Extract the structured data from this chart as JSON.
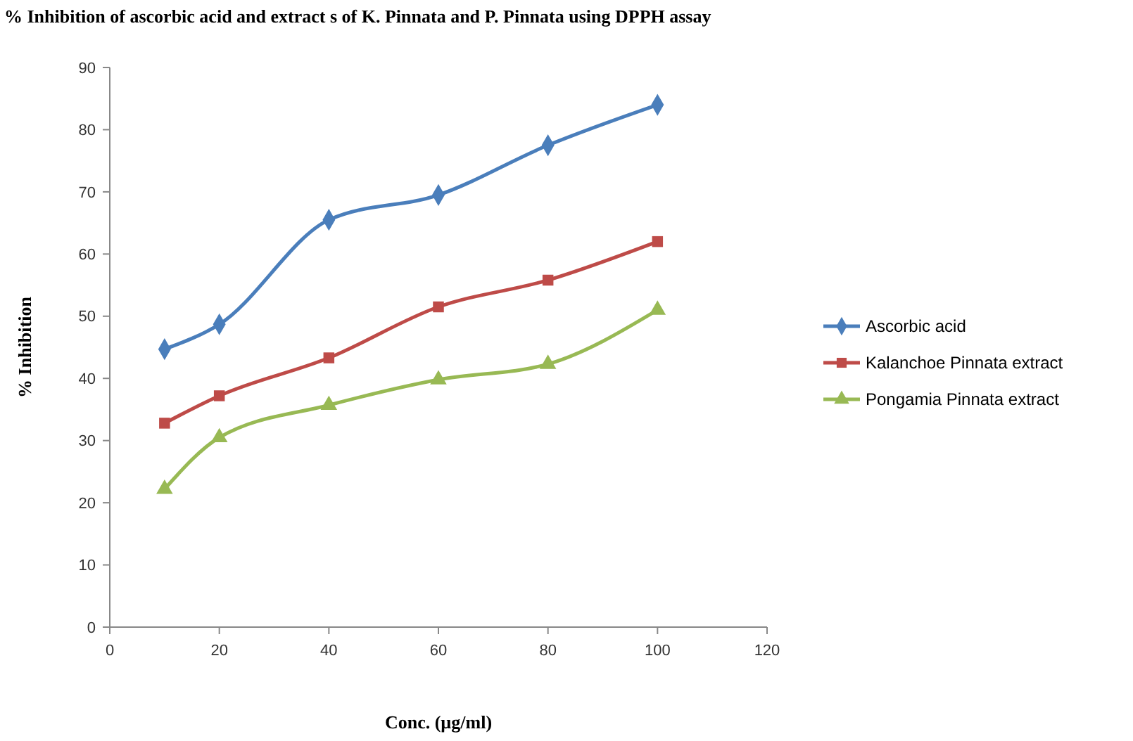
{
  "chart_data": {
    "type": "line",
    "title": "% Inhibition of ascorbic acid and extract s of K. Pinnata and P. Pinnata using DPPH assay",
    "xlabel": "Conc. (µg/ml)",
    "ylabel": "% Inhibition",
    "x": [
      10,
      20,
      40,
      60,
      80,
      100
    ],
    "series": [
      {
        "name": "Ascorbic acid",
        "color": "#4a7ebb",
        "marker": "diamond",
        "values": [
          44.7,
          48.7,
          65.5,
          69.5,
          77.5,
          84
        ]
      },
      {
        "name": "Kalanchoe Pinnata extract",
        "color": "#be4b48",
        "marker": "square",
        "values": [
          32.8,
          37.2,
          43.3,
          51.5,
          55.8,
          62
        ]
      },
      {
        "name": "Pongamia Pinnata extract",
        "color": "#98b954",
        "marker": "triangle",
        "values": [
          22.2,
          30.5,
          35.7,
          39.8,
          42.3,
          51
        ]
      }
    ],
    "xlim": [
      0,
      120
    ],
    "xticks": [
      0,
      20,
      40,
      60,
      80,
      100,
      120
    ],
    "ylim": [
      0,
      90
    ],
    "yticks": [
      0,
      10,
      20,
      30,
      40,
      50,
      60,
      70,
      80,
      90
    ],
    "grid": false,
    "legend": "right",
    "line_style": "solid"
  }
}
